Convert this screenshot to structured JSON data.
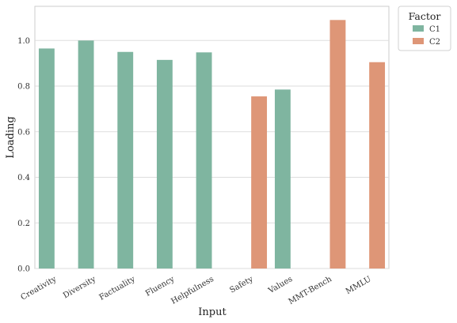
{
  "chart_data": {
    "type": "bar",
    "xlabel": "Input",
    "ylabel": "Loading",
    "categories": [
      "Creativity",
      "Diversity",
      "Factuality",
      "Fluency",
      "Helpfulness",
      "Safety",
      "Values",
      "MMT-Bench",
      "MMLU"
    ],
    "series": [
      {
        "name": "C1",
        "color": "#7fb5a0",
        "values": [
          0.965,
          1.0,
          0.95,
          0.915,
          0.948,
          null,
          0.785,
          null,
          null
        ]
      },
      {
        "name": "C2",
        "color": "#de9677",
        "values": [
          null,
          null,
          null,
          null,
          null,
          0.755,
          null,
          1.09,
          0.905
        ]
      }
    ],
    "ylim": [
      0,
      1.15
    ],
    "yticks": [
      "0.0",
      "0.2",
      "0.4",
      "0.6",
      "0.8",
      "1.0"
    ],
    "grid": "horizontal",
    "legend": {
      "title": "Factor",
      "placement": "outside-top-right"
    }
  }
}
